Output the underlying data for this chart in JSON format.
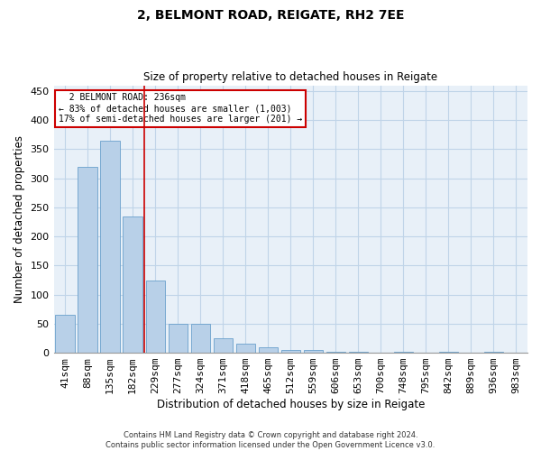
{
  "title_line1": "2, BELMONT ROAD, REIGATE, RH2 7EE",
  "title_line2": "Size of property relative to detached houses in Reigate",
  "xlabel": "Distribution of detached houses by size in Reigate",
  "ylabel": "Number of detached properties",
  "categories": [
    "41sqm",
    "88sqm",
    "135sqm",
    "182sqm",
    "229sqm",
    "277sqm",
    "324sqm",
    "371sqm",
    "418sqm",
    "465sqm",
    "512sqm",
    "559sqm",
    "606sqm",
    "653sqm",
    "700sqm",
    "748sqm",
    "795sqm",
    "842sqm",
    "889sqm",
    "936sqm",
    "983sqm"
  ],
  "bar_heights": [
    65,
    320,
    365,
    235,
    125,
    50,
    50,
    25,
    15,
    10,
    5,
    5,
    1,
    1,
    0,
    1,
    0,
    1,
    0,
    1,
    0
  ],
  "bar_color": "#b8d0e8",
  "bar_edge_color": "#6aa0cc",
  "grid_color": "#c0d4e8",
  "background_color": "#e8f0f8",
  "vline_x": 3.5,
  "vline_color": "#cc0000",
  "annotation_text": "  2 BELMONT ROAD: 236sqm\n← 83% of detached houses are smaller (1,003)\n17% of semi-detached houses are larger (201) →",
  "annotation_box_color": "#ffffff",
  "annotation_box_edge": "#cc0000",
  "ylim": [
    0,
    460
  ],
  "yticks": [
    0,
    50,
    100,
    150,
    200,
    250,
    300,
    350,
    400,
    450
  ],
  "footer_line1": "Contains HM Land Registry data © Crown copyright and database right 2024.",
  "footer_line2": "Contains public sector information licensed under the Open Government Licence v3.0."
}
